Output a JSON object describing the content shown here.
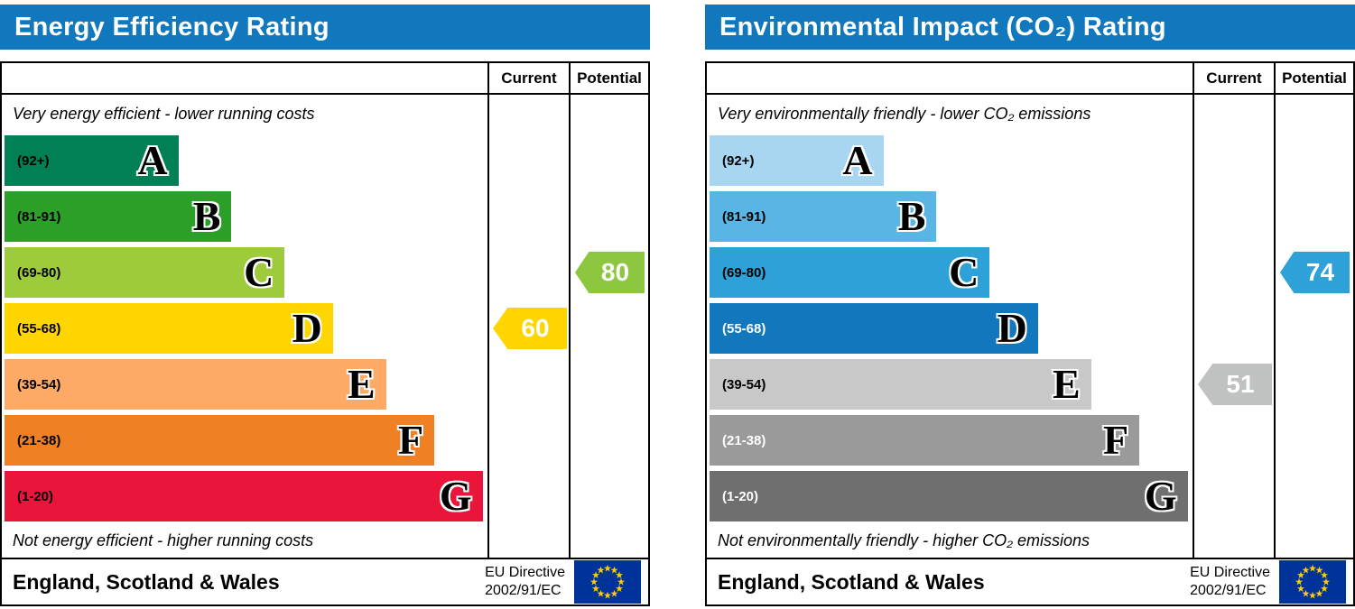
{
  "colors": {
    "header_bg": "#1278be",
    "header_text": "#ffffff",
    "border": "#000000",
    "eu_flag_bg": "#003399",
    "eu_flag_star": "#ffcc00"
  },
  "charts": [
    {
      "id": "energy-efficiency",
      "title": "Energy Efficiency Rating",
      "columns": {
        "current": "Current",
        "potential": "Potential"
      },
      "top_note": "Very energy efficient - lower running costs",
      "bottom_note": "Not energy efficient - higher running costs",
      "bands": [
        {
          "range": "(92+)",
          "letter": "A",
          "color": "#008054",
          "width_pct": 36,
          "label_color": "#000000"
        },
        {
          "range": "(81-91)",
          "letter": "B",
          "color": "#2c9f29",
          "width_pct": 47,
          "label_color": "#000000"
        },
        {
          "range": "(69-80)",
          "letter": "C",
          "color": "#9dcb3c",
          "width_pct": 58,
          "label_color": "#000000"
        },
        {
          "range": "(55-68)",
          "letter": "D",
          "color": "#ffd500",
          "width_pct": 68,
          "label_color": "#000000"
        },
        {
          "range": "(39-54)",
          "letter": "E",
          "color": "#fcaa65",
          "width_pct": 79,
          "label_color": "#000000"
        },
        {
          "range": "(21-38)",
          "letter": "F",
          "color": "#ef8023",
          "width_pct": 89,
          "label_color": "#000000"
        },
        {
          "range": "(1-20)",
          "letter": "G",
          "color": "#e9153b",
          "width_pct": 99,
          "label_color": "#000000"
        }
      ],
      "current": {
        "value": "60",
        "band": "D",
        "band_index": 3,
        "color": "#ffd500",
        "text_color": "#ffffff"
      },
      "potential": {
        "value": "80",
        "band": "C",
        "band_index": 2,
        "color": "#8dc63f",
        "text_color": "#ffffff"
      },
      "footer": {
        "region": "England, Scotland & Wales",
        "directive_line1": "EU Directive",
        "directive_line2": "2002/91/EC"
      }
    },
    {
      "id": "environmental-impact",
      "title": "Environmental Impact (CO₂) Rating",
      "columns": {
        "current": "Current",
        "potential": "Potential"
      },
      "top_note": "Very environmentally friendly - lower CO₂ emissions",
      "bottom_note": "Not environmentally friendly - higher CO₂ emissions",
      "bands": [
        {
          "range": "(92+)",
          "letter": "A",
          "color": "#a8d6f0",
          "width_pct": 36,
          "label_color": "#000000"
        },
        {
          "range": "(81-91)",
          "letter": "B",
          "color": "#58b5e4",
          "width_pct": 47,
          "label_color": "#000000"
        },
        {
          "range": "(69-80)",
          "letter": "C",
          "color": "#2da1d8",
          "width_pct": 58,
          "label_color": "#000000"
        },
        {
          "range": "(55-68)",
          "letter": "D",
          "color": "#1377bd",
          "width_pct": 68,
          "label_color": "#ffffff"
        },
        {
          "range": "(39-54)",
          "letter": "E",
          "color": "#c8c8c8",
          "width_pct": 79,
          "label_color": "#000000"
        },
        {
          "range": "(21-38)",
          "letter": "F",
          "color": "#9a9a9a",
          "width_pct": 89,
          "label_color": "#ffffff"
        },
        {
          "range": "(1-20)",
          "letter": "G",
          "color": "#6f6f6f",
          "width_pct": 99,
          "label_color": "#ffffff"
        }
      ],
      "current": {
        "value": "51",
        "band": "E",
        "band_index": 4,
        "color": "#c0c1c1",
        "text_color": "#ffffff"
      },
      "potential": {
        "value": "74",
        "band": "C",
        "band_index": 2,
        "color": "#2da1d8",
        "text_color": "#ffffff"
      },
      "footer": {
        "region": "England, Scotland & Wales",
        "directive_line1": "EU Directive",
        "directive_line2": "2002/91/EC"
      }
    }
  ],
  "chart_data": [
    {
      "type": "bar",
      "title": "Energy Efficiency Rating",
      "categories": [
        "A (92+)",
        "B (81-91)",
        "C (69-80)",
        "D (55-68)",
        "E (39-54)",
        "F (21-38)",
        "G (1-20)"
      ],
      "band_relative_widths_pct": [
        36,
        47,
        58,
        68,
        79,
        89,
        99
      ],
      "series": [
        {
          "name": "Current",
          "value": 60,
          "band": "D"
        },
        {
          "name": "Potential",
          "value": 80,
          "band": "C"
        }
      ],
      "scale": [
        1,
        100
      ],
      "notes": [
        "Very energy efficient - lower running costs",
        "Not energy efficient - higher running costs"
      ],
      "region": "England, Scotland & Wales",
      "directive": "EU Directive 2002/91/EC"
    },
    {
      "type": "bar",
      "title": "Environmental Impact (CO₂) Rating",
      "categories": [
        "A (92+)",
        "B (81-91)",
        "C (69-80)",
        "D (55-68)",
        "E (39-54)",
        "F (21-38)",
        "G (1-20)"
      ],
      "band_relative_widths_pct": [
        36,
        47,
        58,
        68,
        79,
        89,
        99
      ],
      "series": [
        {
          "name": "Current",
          "value": 51,
          "band": "E"
        },
        {
          "name": "Potential",
          "value": 74,
          "band": "C"
        }
      ],
      "scale": [
        1,
        100
      ],
      "notes": [
        "Very environmentally friendly - lower CO₂ emissions",
        "Not environmentally friendly - higher CO₂ emissions"
      ],
      "region": "England, Scotland & Wales",
      "directive": "EU Directive 2002/91/EC"
    }
  ]
}
